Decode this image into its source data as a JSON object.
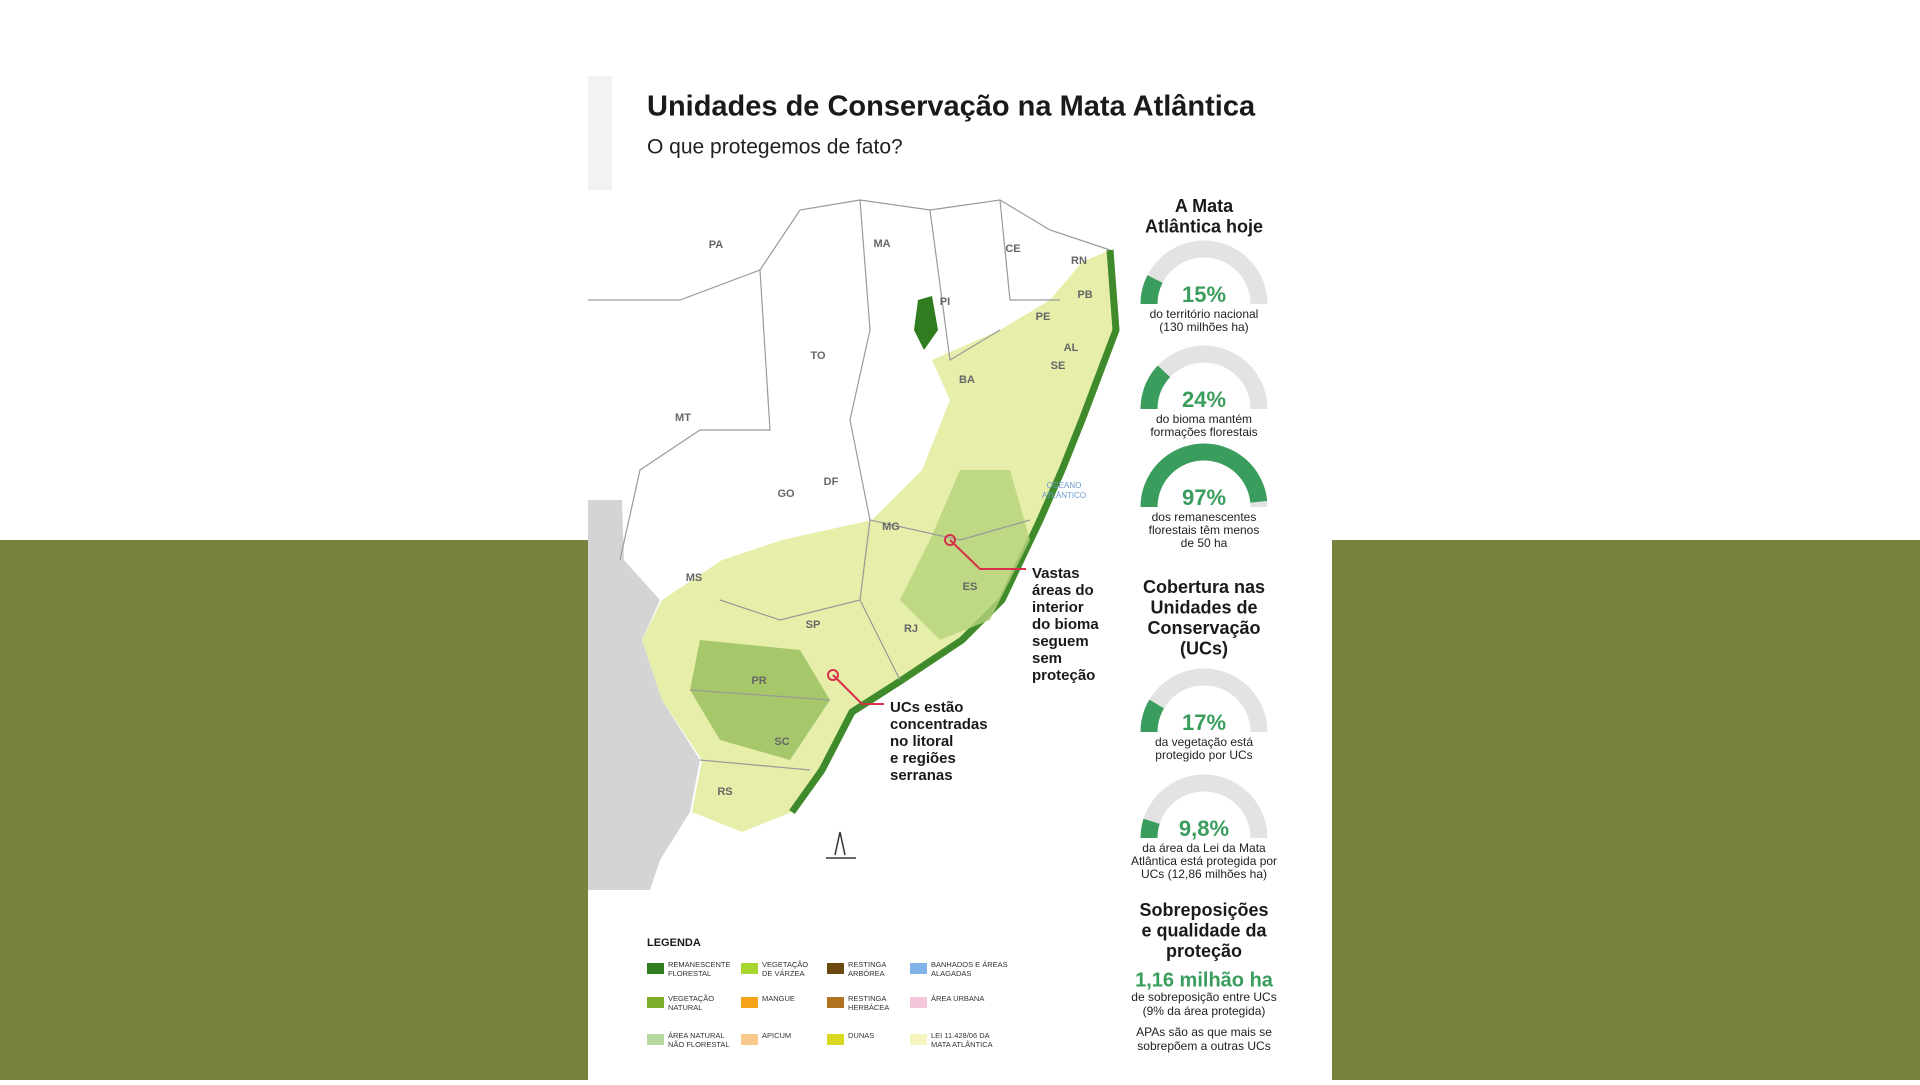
{
  "header": {
    "title": "Unidades de Conservação na Mata Atlântica",
    "subtitle": "O que protegemos de fato?"
  },
  "map": {
    "states": [
      "PA",
      "MA",
      "CE",
      "RN",
      "PB",
      "PI",
      "PE",
      "AL",
      "SE",
      "TO",
      "BA",
      "MT",
      "DF",
      "GO",
      "MG",
      "MS",
      "ES",
      "SP",
      "RJ",
      "PR",
      "SC",
      "RS"
    ],
    "ocean_label": [
      "OCEANO",
      "ATLÂNTICO"
    ],
    "annotations": [
      [
        "Vastas",
        "áreas do",
        "interior",
        "do bioma",
        "seguem",
        "sem",
        "proteção"
      ],
      [
        "UCs estão",
        "concentradas",
        "no litoral",
        "e regiões",
        "serranas"
      ]
    ]
  },
  "panel": {
    "sections": [
      {
        "title": [
          "A Mata",
          "Atlântica hoje"
        ],
        "gauges": [
          {
            "value": 15,
            "label": "15%",
            "caption": [
              "do território nacional",
              "(130 milhões ha)"
            ]
          },
          {
            "value": 24,
            "label": "24%",
            "caption": [
              "do bioma mantém",
              "formações florestais"
            ]
          },
          {
            "value": 97,
            "label": "97%",
            "caption": [
              "dos remanescentes",
              "florestais têm menos",
              "de 50 ha"
            ]
          }
        ]
      },
      {
        "title": [
          "Cobertura nas",
          "Unidades de",
          "Conservação",
          "(UCs)"
        ],
        "gauges": [
          {
            "value": 17,
            "label": "17%",
            "caption": [
              "da vegetação está",
              "protegido por UCs"
            ]
          },
          {
            "value": 9.8,
            "label": "9,8%",
            "caption": [
              "da área da Lei da Mata",
              "Atlântica está protegida por",
              "UCs (12,86 milhões ha)"
            ]
          }
        ]
      },
      {
        "title": [
          "Sobreposições",
          "e qualidade da",
          "proteção"
        ],
        "highlight": "1,16 milhão ha",
        "caption": [
          "de sobreposição entre UCs",
          "(9% da área protegida)"
        ],
        "note": [
          "APAs são as que mais se",
          "sobrepõem a outras UCs"
        ]
      }
    ]
  },
  "legend": {
    "title": "LEGENDA",
    "items": [
      {
        "label": [
          "REMANESCENTE",
          "FLORESTAL"
        ],
        "color": "#2f7d1f"
      },
      {
        "label": [
          "VEGETAÇÃO",
          "NATURAL"
        ],
        "color": "#7cae2a"
      },
      {
        "label": [
          "ÁREA NATURAL",
          "NÃO FLORESTAL"
        ],
        "color": "#b7d9a0"
      },
      {
        "label": [
          "VEGETAÇÃO",
          "DE VÁRZEA"
        ],
        "color": "#a6d62f"
      },
      {
        "label": [
          "MANGUE"
        ],
        "color": "#f4a31a"
      },
      {
        "label": [
          "APICUM"
        ],
        "color": "#f7c98d"
      },
      {
        "label": [
          "RESTINGA",
          "ARBÓREA"
        ],
        "color": "#6b4a12"
      },
      {
        "label": [
          "RESTINGA",
          "HERBÁCEA"
        ],
        "color": "#b0731f"
      },
      {
        "label": [
          "DUNAS"
        ],
        "color": "#d8d820"
      },
      {
        "label": [
          "BANHADOS E ÁREAS",
          "ALAGADAS"
        ],
        "color": "#7fb3ea"
      },
      {
        "label": [
          "ÁREA URBANA"
        ],
        "color": "#f4c6dc"
      },
      {
        "label": [
          "LEI 11.428/06 DA",
          "MATA ATLÂNTICA"
        ],
        "color": "#f7f5bf"
      }
    ]
  }
}
